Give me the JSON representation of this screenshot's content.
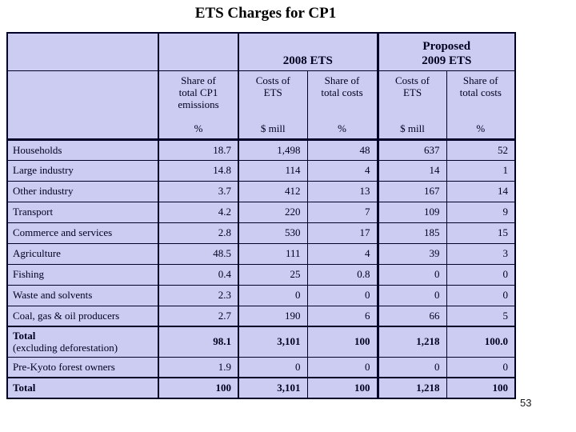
{
  "title": "ETS Charges for CP1",
  "page_number": "53",
  "colors": {
    "cell_background": "#ccccf2",
    "border": "#000028",
    "text": "#000020",
    "page_background": "#ffffff"
  },
  "table": {
    "group_headers": [
      {
        "label": "2008 ETS"
      },
      {
        "label": "Proposed\n2009 ETS"
      }
    ],
    "columns": [
      {
        "heading": "Share of\ntotal CP1\nemissions",
        "unit": "%"
      },
      {
        "heading": "Costs of\nETS",
        "unit": "$ mill"
      },
      {
        "heading": "Share of\ntotal costs",
        "unit": "%"
      },
      {
        "heading": "Costs of\nETS",
        "unit": "$ mill"
      },
      {
        "heading": "Share of\ntotal costs",
        "unit": "%"
      }
    ],
    "rows": [
      {
        "label": "Households",
        "values": [
          "18.7",
          "1,498",
          "48",
          "637",
          "52"
        ],
        "bold": false
      },
      {
        "label": "Large industry",
        "values": [
          "14.8",
          "114",
          "4",
          "14",
          "1"
        ],
        "bold": false
      },
      {
        "label": "Other industry",
        "values": [
          "3.7",
          "412",
          "13",
          "167",
          "14"
        ],
        "bold": false
      },
      {
        "label": "Transport",
        "values": [
          "4.2",
          "220",
          "7",
          "109",
          "9"
        ],
        "bold": false
      },
      {
        "label": "Commerce and services",
        "values": [
          "2.8",
          "530",
          "17",
          "185",
          "15"
        ],
        "bold": false
      },
      {
        "label": "Agriculture",
        "values": [
          "48.5",
          "111",
          "4",
          "39",
          "3"
        ],
        "bold": false
      },
      {
        "label": "Fishing",
        "values": [
          "0.4",
          "25",
          "0.8",
          "0",
          "0"
        ],
        "bold": false
      },
      {
        "label": "Waste and solvents",
        "values": [
          "2.3",
          "0",
          "0",
          "0",
          "0"
        ],
        "bold": false
      },
      {
        "label": "Coal, gas & oil producers",
        "values": [
          "2.7",
          "190",
          "6",
          "66",
          "5"
        ],
        "bold": false
      },
      {
        "label": "Total",
        "sublabel": "(excluding deforestation)",
        "values": [
          "98.1",
          "3,101",
          "100",
          "1,218",
          "100.0"
        ],
        "bold": true
      },
      {
        "label": "Pre-Kyoto forest owners",
        "values": [
          "1.9",
          "0",
          "0",
          "0",
          "0"
        ],
        "bold": false
      },
      {
        "label": "Total",
        "values": [
          "100",
          "3,101",
          "100",
          "1,218",
          "100"
        ],
        "bold": true
      }
    ]
  }
}
